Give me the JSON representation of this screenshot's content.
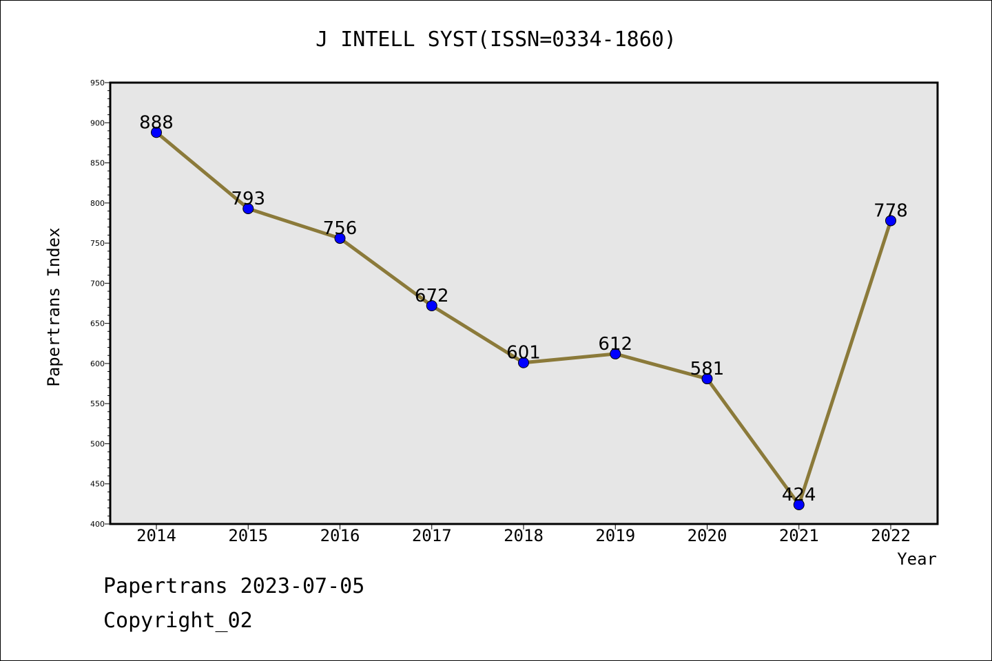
{
  "chart_data": {
    "type": "line",
    "title": "J INTELL SYST(ISSN=0334-1860)",
    "xlabel": "Year",
    "ylabel": "Papertrans Index",
    "categories": [
      "2014",
      "2015",
      "2016",
      "2017",
      "2018",
      "2019",
      "2020",
      "2021",
      "2022"
    ],
    "series": [
      {
        "values": [
          888,
          793,
          756,
          672,
          601,
          612,
          581,
          424,
          778
        ],
        "line_color": "#8b7a3a",
        "marker_color": "#0000ff"
      }
    ],
    "data_labels": [
      "888",
      "793",
      "756",
      "672",
      "601",
      "612",
      "581",
      "424",
      "778"
    ],
    "yticks": [
      "400",
      "450",
      "500",
      "550",
      "600",
      "650",
      "700",
      "750",
      "800",
      "850",
      "900",
      "950"
    ],
    "ylim": [
      400,
      950
    ],
    "plot_background": "#e6e6e6",
    "grid": false,
    "legend": "none"
  },
  "footer": {
    "line1": "Papertrans 2023-07-05",
    "line2": "Copyright_02"
  }
}
